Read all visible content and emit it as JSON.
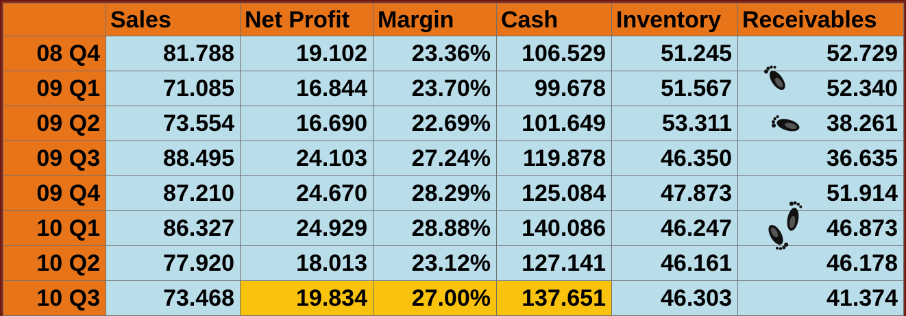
{
  "columns": [
    "Sales",
    "Net Profit",
    "Margin",
    "Cash",
    "Inventory",
    "Receivables"
  ],
  "rows": [
    {
      "label": "08 Q4",
      "values": [
        "81.788",
        "19.102",
        "23.36%",
        "106.529",
        "51.245",
        "52.729"
      ]
    },
    {
      "label": "09 Q1",
      "values": [
        "71.085",
        "16.844",
        "23.70%",
        "99.678",
        "51.567",
        "52.340"
      ]
    },
    {
      "label": "09 Q2",
      "values": [
        "73.554",
        "16.690",
        "22.69%",
        "101.649",
        "53.311",
        "38.261"
      ]
    },
    {
      "label": "09 Q3",
      "values": [
        "88.495",
        "24.103",
        "27.24%",
        "119.878",
        "46.350",
        "36.635"
      ]
    },
    {
      "label": "09 Q4",
      "values": [
        "87.210",
        "24.670",
        "28.29%",
        "125.084",
        "47.873",
        "51.914"
      ]
    },
    {
      "label": "10 Q1",
      "values": [
        "86.327",
        "24.929",
        "28.88%",
        "140.086",
        "46.247",
        "46.873"
      ]
    },
    {
      "label": "10 Q2",
      "values": [
        "77.920",
        "18.013",
        "23.12%",
        "127.141",
        "46.161",
        "46.178"
      ]
    },
    {
      "label": "10 Q3",
      "values": [
        "73.468",
        "19.834",
        "27.00%",
        "137.651",
        "46.303",
        "41.374"
      ]
    }
  ],
  "colors": {
    "header_bg": "#e8741a",
    "cell_bg": "#b9dde9",
    "highlight_bg": "#f9c20d",
    "frame": "#7a1f14"
  },
  "decorations": [
    "footprint-icon"
  ]
}
